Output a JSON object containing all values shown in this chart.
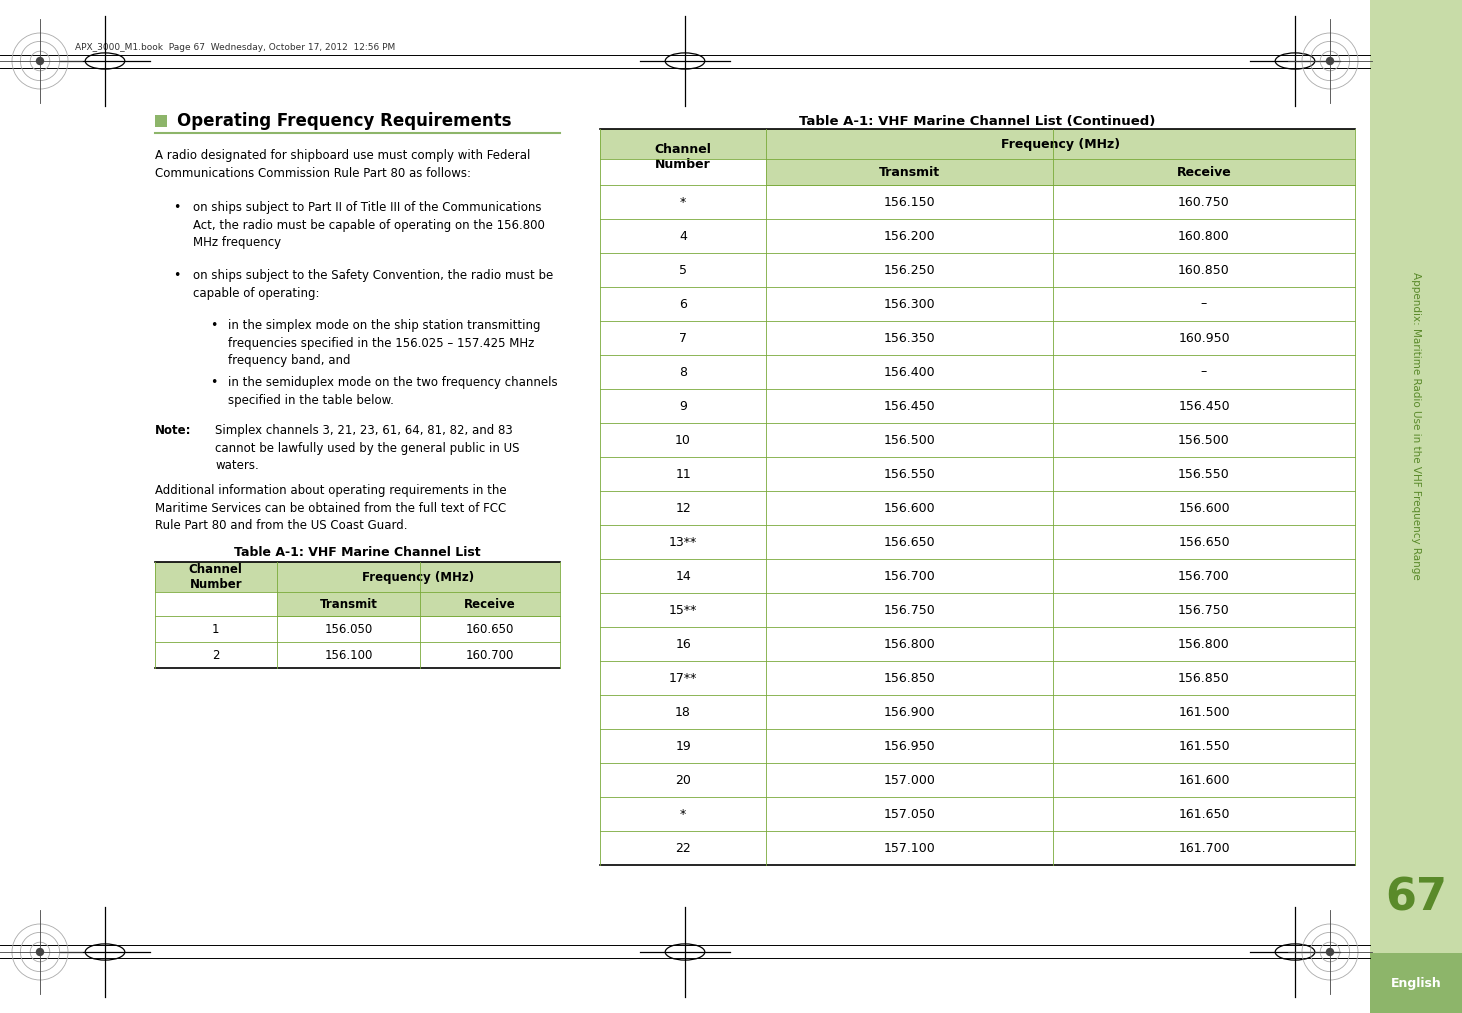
{
  "page_number": "67",
  "sidebar_text": "Appendix: Maritime Radio Use in the VHF Frequency Range",
  "sidebar_label": "English",
  "header_text": "APX_3000_M1.book  Page 67  Wednesday, October 17, 2012  12:56 PM",
  "left_section_title": "■   Operating Frequency Requirements",
  "table1_title": "Table A-1: VHF Marine Channel List",
  "table1_rows": [
    [
      "1",
      "156.050",
      "160.650"
    ],
    [
      "2",
      "156.100",
      "160.700"
    ]
  ],
  "table2_title": "Table A-1: VHF Marine Channel List (Continued)",
  "table2_rows": [
    [
      "*",
      "156.150",
      "160.750"
    ],
    [
      "4",
      "156.200",
      "160.800"
    ],
    [
      "5",
      "156.250",
      "160.850"
    ],
    [
      "6",
      "156.300",
      "–"
    ],
    [
      "7",
      "156.350",
      "160.950"
    ],
    [
      "8",
      "156.400",
      "–"
    ],
    [
      "9",
      "156.450",
      "156.450"
    ],
    [
      "10",
      "156.500",
      "156.500"
    ],
    [
      "11",
      "156.550",
      "156.550"
    ],
    [
      "12",
      "156.600",
      "156.600"
    ],
    [
      "13**",
      "156.650",
      "156.650"
    ],
    [
      "14",
      "156.700",
      "156.700"
    ],
    [
      "15**",
      "156.750",
      "156.750"
    ],
    [
      "16",
      "156.800",
      "156.800"
    ],
    [
      "17**",
      "156.850",
      "156.850"
    ],
    [
      "18",
      "156.900",
      "161.500"
    ],
    [
      "19",
      "156.950",
      "161.550"
    ],
    [
      "20",
      "157.000",
      "161.600"
    ],
    [
      "*",
      "157.050",
      "161.650"
    ],
    [
      "22",
      "157.100",
      "161.700"
    ]
  ],
  "bg_color": "#ffffff",
  "table_header_bg": "#c8dca8",
  "table_header_bg2": "#9abf6e",
  "table_line_color": "#7aaa3a",
  "sidebar_bg": "#c8dca8",
  "sidebar_text_color": "#5a8a2a",
  "page_num_color": "#5a8a2a",
  "english_label_color": "#ffffff",
  "english_bg_color": "#8db56a",
  "title_underline_color": "#8db56a",
  "title_square_color": "#8db56a"
}
